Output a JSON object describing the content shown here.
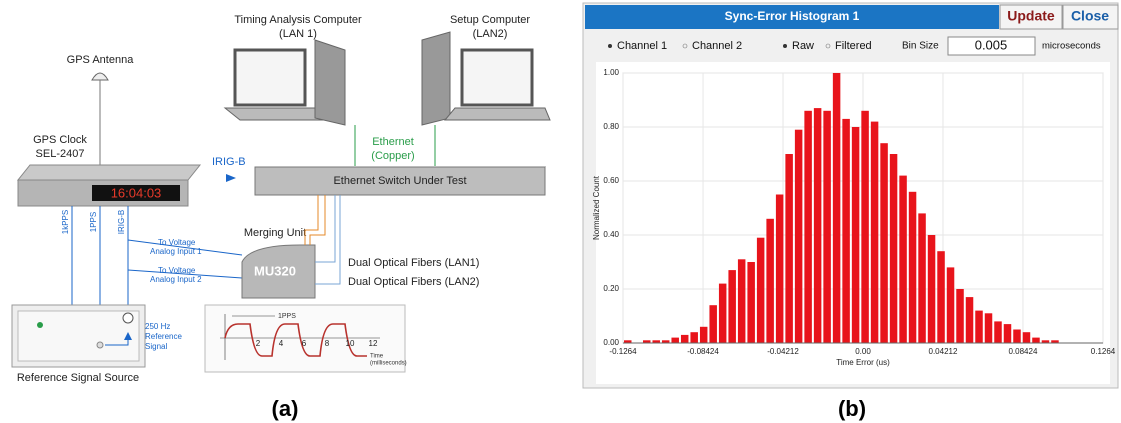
{
  "diagram": {
    "gps_antenna": "GPS Antenna",
    "gps_clock": [
      "GPS Clock",
      "SEL-2407"
    ],
    "clock_display": "16:04:03",
    "timing_computer": [
      "Timing Analysis Computer",
      "(LAN 1)"
    ],
    "setup_computer": [
      "Setup Computer",
      "(LAN2)"
    ],
    "ethernet": [
      "Ethernet",
      "(Copper)"
    ],
    "irig_top": "IRIG-B",
    "switch": "Ethernet Switch Under Test",
    "clock_outputs": [
      "1kPPS",
      "1PPS",
      "IRIG-B"
    ],
    "analog_input_1": [
      "To Voltage",
      "Analog Input 1"
    ],
    "analog_input_2": [
      "To Voltage",
      "Analog Input 2"
    ],
    "merging_unit": "Merging Unit",
    "mu_model": "MU320",
    "fibers": [
      "Dual Optical Fibers (LAN1)",
      "Dual Optical Fibers (LAN2)"
    ],
    "reference_signal": [
      "250 Hz",
      "Reference",
      "Signal"
    ],
    "waveform_pps": "1PPS",
    "waveform_ticks": [
      "2",
      "4",
      "6",
      "8",
      "10",
      "12"
    ],
    "waveform_axis": [
      "Time",
      "(milliseconds)"
    ],
    "reference_source": "Reference Signal Source",
    "caption": "(a)"
  },
  "window": {
    "title": "Sync-Error Histogram 1",
    "buttons": [
      "Update",
      "Close"
    ],
    "channels": [
      "Channel 1",
      "Channel 2"
    ],
    "modes": [
      "Raw",
      "Filtered"
    ],
    "bin_size_label": "Bin Size",
    "bin_size": "0.005",
    "bin_size_unit": "microseconds",
    "caption": "(b)"
  },
  "chart_data": {
    "type": "histogram",
    "x_label": "Time Error (us)",
    "y_label": "Normalized Count",
    "color": "#e8141b",
    "bins": [
      -0.1264,
      -0.1214,
      -0.1164,
      -0.1114,
      -0.1064,
      -0.1014,
      -0.0964,
      -0.0914,
      -0.0864,
      -0.0814,
      -0.0764,
      -0.0714,
      -0.0664,
      -0.0614,
      -0.0564,
      -0.0514,
      -0.0464,
      -0.0414,
      -0.0364,
      -0.0314,
      -0.0264,
      -0.0214,
      -0.0164,
      -0.0114,
      -0.0064,
      -0.0014,
      0.0036,
      0.0086,
      0.0136,
      0.0186,
      0.0236,
      0.0286,
      0.0336,
      0.0386,
      0.0436,
      0.0486,
      0.0536,
      0.0586,
      0.0636,
      0.0686,
      0.0736,
      0.0786,
      0.0836,
      0.0886,
      0.0936,
      0.0986,
      0.1036,
      0.1086,
      0.1136,
      0.1186,
      0.1236
    ],
    "values": [
      0.01,
      0,
      0.01,
      0.01,
      0.01,
      0.02,
      0.03,
      0.04,
      0.06,
      0.14,
      0.22,
      0.27,
      0.31,
      0.3,
      0.39,
      0.46,
      0.55,
      0.7,
      0.79,
      0.86,
      0.87,
      0.86,
      1.0,
      0.83,
      0.8,
      0.86,
      0.82,
      0.74,
      0.7,
      0.62,
      0.56,
      0.48,
      0.4,
      0.34,
      0.28,
      0.2,
      0.17,
      0.12,
      0.11,
      0.08,
      0.07,
      0.05,
      0.04,
      0.02,
      0.01,
      0.01,
      0,
      0,
      0,
      0
    ],
    "xlim": [
      -0.1264,
      0.1264
    ],
    "xticks": [
      -0.1264,
      -0.08424,
      -0.04212,
      {
        "value": 0,
        "label": "0.00"
      },
      0.04212,
      0.08424,
      0.1264
    ],
    "ylim": [
      0,
      1
    ],
    "yticks": [
      {
        "value": 0,
        "label": "0.00"
      },
      {
        "value": 0.2,
        "label": "0.20"
      },
      {
        "value": 0.4,
        "label": "0.40"
      },
      {
        "value": 0.6,
        "label": "0.60"
      },
      {
        "value": 0.8,
        "label": "0.80"
      },
      {
        "value": 1,
        "label": "1.00"
      }
    ],
    "grid": true
  }
}
